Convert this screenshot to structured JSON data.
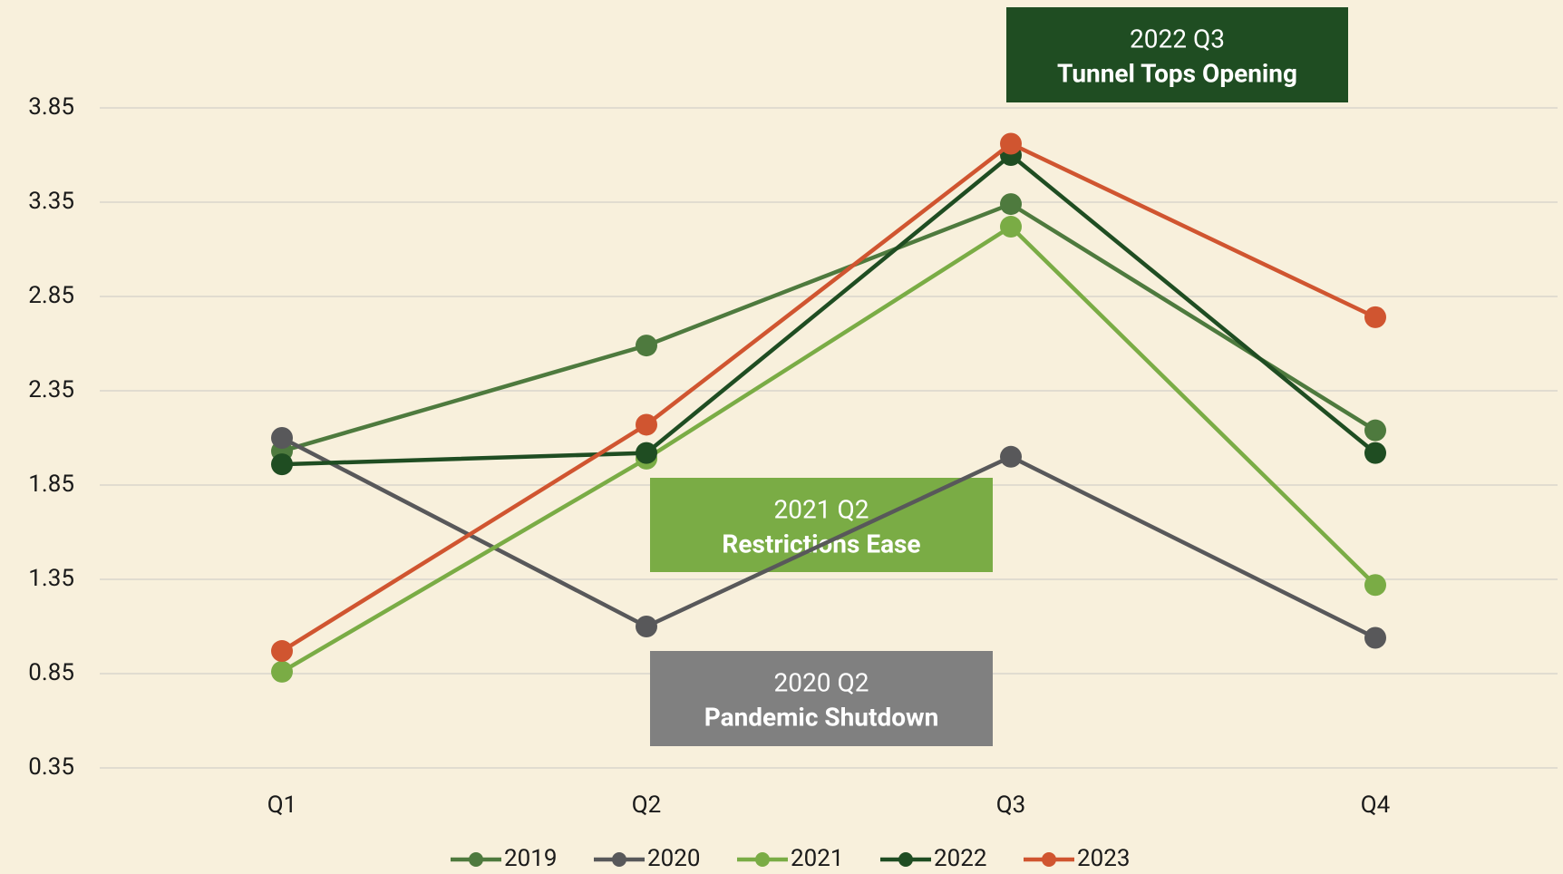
{
  "chart_data": {
    "type": "line",
    "categories": [
      "Q1",
      "Q2",
      "Q3",
      "Q4"
    ],
    "series": [
      {
        "name": "2019",
        "color": "#4e7a3e",
        "values": [
          2.03,
          2.59,
          3.34,
          2.14
        ]
      },
      {
        "name": "2020",
        "color": "#58585a",
        "values": [
          2.1,
          1.1,
          2.0,
          1.04
        ]
      },
      {
        "name": "2021",
        "color": "#7aac45",
        "values": [
          0.86,
          1.99,
          3.22,
          1.32
        ]
      },
      {
        "name": "2022",
        "color": "#1f4d22",
        "values": [
          1.96,
          2.02,
          3.6,
          2.02
        ]
      },
      {
        "name": "2023",
        "color": "#d05530",
        "values": [
          0.97,
          2.17,
          3.66,
          2.74
        ]
      }
    ],
    "ylim": [
      0.35,
      4.35
    ],
    "yticks": [
      0.35,
      0.85,
      1.35,
      1.85,
      2.35,
      2.85,
      3.35,
      3.85
    ],
    "grid": true,
    "legend": "bottom",
    "annotations": [
      {
        "lines": [
          "2022 Q3",
          "Tunnel Tops Opening"
        ],
        "color": "#1f4d22"
      },
      {
        "lines": [
          "2021 Q2",
          "Restrictions Ease"
        ],
        "color": "#7aac45"
      },
      {
        "lines": [
          "2020 Q2",
          "Pandemic Shutdown"
        ],
        "color": "#808080"
      }
    ]
  }
}
